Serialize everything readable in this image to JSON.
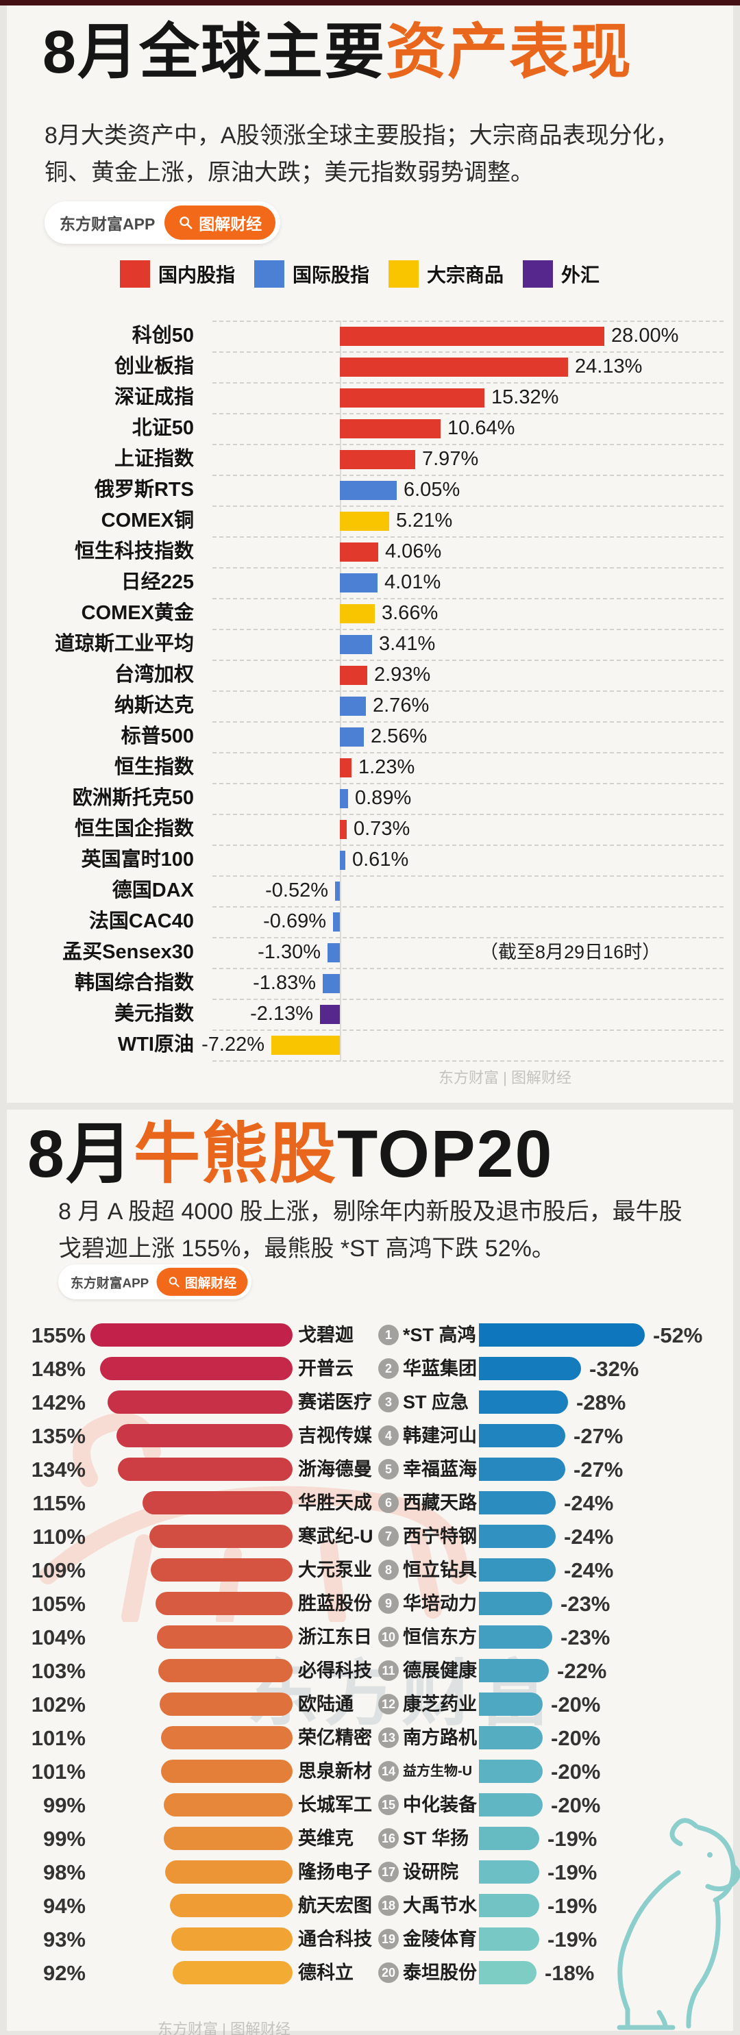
{
  "brand": {
    "app_label": "东方财富APP",
    "tag_label": "图解财经",
    "watermark": "东方财富 | 图解财经",
    "center_watermark": "东方财富",
    "accent_orange": "#e8671c"
  },
  "section1": {
    "title_part1": "8月全球主要",
    "title_part2": "资产表现",
    "subtitle": "8月大类资产中，A股领涨全球主要股指；大宗商品表现分化，铜、黄金上涨，原油大跌；美元指数弱势调整。",
    "note": "（截至8月29日16时）"
  },
  "section2": {
    "title_part1": "8月",
    "title_part2": "牛熊股",
    "title_part3": "TOP20",
    "subtitle": "8 月 A 股超 4000 股上涨，剔除年内新股及退市股后，最牛股戈碧迦上涨 155%，最熊股 *ST 高鸿下跌 52%。"
  },
  "chart_data": [
    {
      "type": "bar",
      "title": "8月全球主要资产表现",
      "orientation": "horizontal",
      "unit": "%",
      "xlim": [
        -8,
        29
      ],
      "grid": "dashed-row-separators",
      "note": "（截至8月29日16时）",
      "legend": [
        {
          "label": "国内股指",
          "color": "#e13a2c"
        },
        {
          "label": "国际股指",
          "color": "#4b80d5"
        },
        {
          "label": "大宗商品",
          "color": "#f9c501"
        },
        {
          "label": "外汇",
          "color": "#56278c"
        }
      ],
      "rows": [
        {
          "label": "科创50",
          "value": 28.0,
          "display": "28.00%",
          "category": 0
        },
        {
          "label": "创业板指",
          "value": 24.13,
          "display": "24.13%",
          "category": 0
        },
        {
          "label": "深证成指",
          "value": 15.32,
          "display": "15.32%",
          "category": 0
        },
        {
          "label": "北证50",
          "value": 10.64,
          "display": "10.64%",
          "category": 0
        },
        {
          "label": "上证指数",
          "value": 7.97,
          "display": "7.97%",
          "category": 0
        },
        {
          "label": "俄罗斯RTS",
          "value": 6.05,
          "display": "6.05%",
          "category": 1
        },
        {
          "label": "COMEX铜",
          "value": 5.21,
          "display": "5.21%",
          "category": 2
        },
        {
          "label": "恒生科技指数",
          "value": 4.06,
          "display": "4.06%",
          "category": 0
        },
        {
          "label": "日经225",
          "value": 4.01,
          "display": "4.01%",
          "category": 1
        },
        {
          "label": "COMEX黄金",
          "value": 3.66,
          "display": "3.66%",
          "category": 2
        },
        {
          "label": "道琼斯工业平均",
          "value": 3.41,
          "display": "3.41%",
          "category": 1
        },
        {
          "label": "台湾加权",
          "value": 2.93,
          "display": "2.93%",
          "category": 0
        },
        {
          "label": "纳斯达克",
          "value": 2.76,
          "display": "2.76%",
          "category": 1
        },
        {
          "label": "标普500",
          "value": 2.56,
          "display": "2.56%",
          "category": 1
        },
        {
          "label": "恒生指数",
          "value": 1.23,
          "display": "1.23%",
          "category": 0
        },
        {
          "label": "欧洲斯托克50",
          "value": 0.89,
          "display": "0.89%",
          "category": 1
        },
        {
          "label": "恒生国企指数",
          "value": 0.73,
          "display": "0.73%",
          "category": 0
        },
        {
          "label": "英国富时100",
          "value": 0.61,
          "display": "0.61%",
          "category": 1
        },
        {
          "label": "德国DAX",
          "value": -0.52,
          "display": "-0.52%",
          "category": 1
        },
        {
          "label": "法国CAC40",
          "value": -0.69,
          "display": "-0.69%",
          "category": 1
        },
        {
          "label": "孟买Sensex30",
          "value": -1.3,
          "display": "-1.30%",
          "category": 1,
          "note": true
        },
        {
          "label": "韩国综合指数",
          "value": -1.83,
          "display": "-1.83%",
          "category": 1
        },
        {
          "label": "美元指数",
          "value": -2.13,
          "display": "-2.13%",
          "category": 3
        },
        {
          "label": "WTI原油",
          "value": -7.22,
          "display": "-7.22%",
          "category": 2
        }
      ]
    },
    {
      "type": "bar",
      "title": "8月最牛股TOP20",
      "orientation": "horizontal",
      "unit": "%",
      "bar_color_start": "#c22149",
      "bar_color_end": "#f4ab33",
      "rows": [
        {
          "rank": 1,
          "name": "戈碧迦",
          "value": 155,
          "display": "155%"
        },
        {
          "rank": 2,
          "name": "开普云",
          "value": 148,
          "display": "148%"
        },
        {
          "rank": 3,
          "name": "赛诺医疗",
          "value": 142,
          "display": "142%"
        },
        {
          "rank": 4,
          "name": "吉视传媒",
          "value": 135,
          "display": "135%"
        },
        {
          "rank": 5,
          "name": "浙海德曼",
          "value": 134,
          "display": "134%"
        },
        {
          "rank": 6,
          "name": "华胜天成",
          "value": 115,
          "display": "115%"
        },
        {
          "rank": 7,
          "name": "寒武纪-U",
          "value": 110,
          "display": "110%"
        },
        {
          "rank": 8,
          "name": "大元泵业",
          "value": 109,
          "display": "109%"
        },
        {
          "rank": 9,
          "name": "胜蓝股份",
          "value": 105,
          "display": "105%"
        },
        {
          "rank": 10,
          "name": "浙江东日",
          "value": 104,
          "display": "104%"
        },
        {
          "rank": 11,
          "name": "必得科技",
          "value": 103,
          "display": "103%"
        },
        {
          "rank": 12,
          "name": "欧陆通",
          "value": 102,
          "display": "102%"
        },
        {
          "rank": 13,
          "name": "荣亿精密",
          "value": 101,
          "display": "101%"
        },
        {
          "rank": 14,
          "name": "思泉新材",
          "value": 101,
          "display": "101%"
        },
        {
          "rank": 15,
          "name": "长城军工",
          "value": 99,
          "display": "99%"
        },
        {
          "rank": 16,
          "name": "英维克",
          "value": 99,
          "display": "99%"
        },
        {
          "rank": 17,
          "name": "隆扬电子",
          "value": 98,
          "display": "98%"
        },
        {
          "rank": 18,
          "name": "航天宏图",
          "value": 94,
          "display": "94%"
        },
        {
          "rank": 19,
          "name": "通合科技",
          "value": 93,
          "display": "93%"
        },
        {
          "rank": 20,
          "name": "德科立",
          "value": 92,
          "display": "92%"
        }
      ]
    },
    {
      "type": "bar",
      "title": "8月最熊股TOP20",
      "orientation": "horizontal",
      "unit": "%",
      "bar_color_start": "#0e76bd",
      "bar_color_end": "#7ecdc5",
      "rows": [
        {
          "rank": 1,
          "name": "*ST 高鸿",
          "value": -52,
          "display": "-52%"
        },
        {
          "rank": 2,
          "name": "华蓝集团",
          "value": -32,
          "display": "-32%"
        },
        {
          "rank": 3,
          "name": "ST 应急",
          "value": -28,
          "display": "-28%"
        },
        {
          "rank": 4,
          "name": "韩建河山",
          "value": -27,
          "display": "-27%"
        },
        {
          "rank": 5,
          "name": "幸福蓝海",
          "value": -27,
          "display": "-27%"
        },
        {
          "rank": 6,
          "name": "西藏天路",
          "value": -24,
          "display": "-24%"
        },
        {
          "rank": 7,
          "name": "西宁特钢",
          "value": -24,
          "display": "-24%"
        },
        {
          "rank": 8,
          "name": "恒立钻具",
          "value": -24,
          "display": "-24%"
        },
        {
          "rank": 9,
          "name": "华培动力",
          "value": -23,
          "display": "-23%"
        },
        {
          "rank": 10,
          "name": "恒信东方",
          "value": -23,
          "display": "-23%"
        },
        {
          "rank": 11,
          "name": "德展健康",
          "value": -22,
          "display": "-22%"
        },
        {
          "rank": 12,
          "name": "康芝药业",
          "value": -20,
          "display": "-20%"
        },
        {
          "rank": 13,
          "name": "南方路机",
          "value": -20,
          "display": "-20%"
        },
        {
          "rank": 14,
          "name": "益方生物-U",
          "value": -20,
          "display": "-20%",
          "small": true
        },
        {
          "rank": 15,
          "name": "中化装备",
          "value": -20,
          "display": "-20%"
        },
        {
          "rank": 16,
          "name": "ST 华扬",
          "value": -19,
          "display": "-19%"
        },
        {
          "rank": 17,
          "name": "设研院",
          "value": -19,
          "display": "-19%"
        },
        {
          "rank": 18,
          "name": "大禹节水",
          "value": -19,
          "display": "-19%"
        },
        {
          "rank": 19,
          "name": "金陵体育",
          "value": -19,
          "display": "-19%"
        },
        {
          "rank": 20,
          "name": "泰坦股份",
          "value": -18,
          "display": "-18%"
        }
      ]
    }
  ]
}
